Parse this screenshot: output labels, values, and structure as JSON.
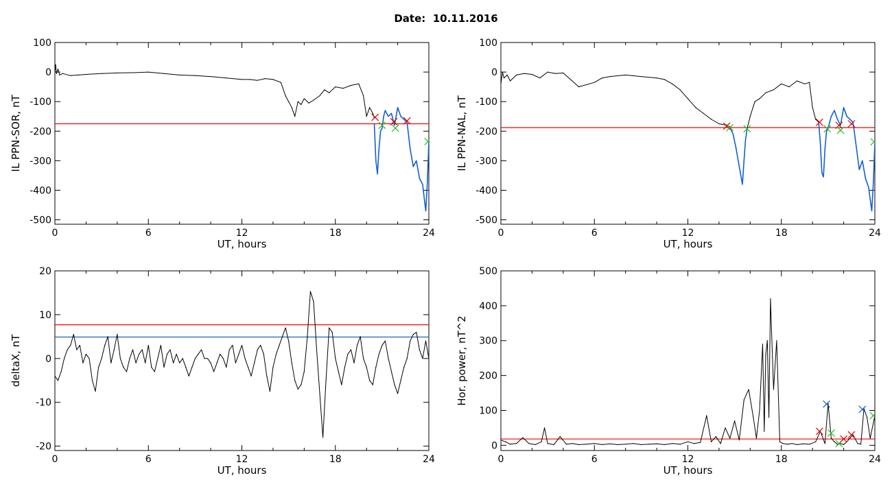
{
  "header": {
    "date_label": "Date:",
    "date_value": "10.11.2016"
  },
  "colors": {
    "axis": "#000000",
    "data": "#000000",
    "threshold_red": "#ff0000",
    "threshold_blue": "#1f5fbf",
    "highlight_blue": "#1060d0",
    "marker_red": "#e00000",
    "marker_green": "#22bb22",
    "marker_blue": "#1060d0"
  },
  "chart_data": [
    {
      "type": "line",
      "ylabel": "IL PPN-SOR, nT",
      "xlabel": "UT, hours",
      "xlim": [
        0,
        24
      ],
      "ylim": [
        -515,
        100
      ],
      "xticks": [
        0,
        6,
        12,
        18,
        24
      ],
      "yticks": [
        100,
        0,
        -100,
        -200,
        -300,
        -400,
        -500
      ],
      "thresholds": [
        {
          "y": -175,
          "color": "#ff0000"
        }
      ],
      "series": [
        {
          "color": "#000000",
          "x": [
            0,
            0.05,
            0.1,
            0.2,
            0.3,
            0.5,
            1,
            1.5,
            2,
            3,
            4,
            5,
            6,
            7,
            8,
            9,
            10,
            11,
            12,
            12.5,
            13,
            13.5,
            14,
            14.5,
            14.8,
            15,
            15.2,
            15.4,
            15.6,
            15.8,
            16,
            16.3,
            16.6,
            17,
            17.3,
            17.6,
            18,
            18.5,
            19,
            19.5,
            19.8,
            20,
            20.2,
            20.4,
            20.5
          ],
          "y": [
            0,
            25,
            -5,
            10,
            -10,
            -5,
            -12,
            -10,
            -8,
            -5,
            -3,
            -2,
            0,
            -5,
            -10,
            -12,
            -15,
            -20,
            -25,
            -25,
            -28,
            -22,
            -25,
            -35,
            -80,
            -100,
            -120,
            -150,
            -100,
            -110,
            -90,
            -105,
            -95,
            -80,
            -60,
            -70,
            -50,
            -55,
            -45,
            -40,
            -80,
            -150,
            -120,
            -140,
            -155
          ]
        },
        {
          "color": "#1060d0",
          "x": [
            20.5,
            20.6,
            20.7,
            20.8,
            20.9,
            21,
            21.1,
            21.2,
            21.4,
            21.6,
            21.8,
            22,
            22.2,
            22.4,
            22.6,
            22.8,
            23,
            23.2,
            23.4,
            23.6,
            23.8,
            23.9,
            24
          ],
          "y": [
            -175,
            -300,
            -345,
            -260,
            -200,
            -190,
            -150,
            -130,
            -150,
            -140,
            -180,
            -120,
            -150,
            -160,
            -170,
            -260,
            -320,
            -300,
            -360,
            -380,
            -470,
            -380,
            -235
          ]
        }
      ],
      "markers": [
        {
          "x": 20.55,
          "y": -153,
          "symbol": "x",
          "color": "#e00000"
        },
        {
          "x": 21.0,
          "y": -180,
          "symbol": "x",
          "color": "#22bb22"
        },
        {
          "x": 21.75,
          "y": -168,
          "symbol": "x",
          "color": "#e00000"
        },
        {
          "x": 21.85,
          "y": -190,
          "symbol": "x",
          "color": "#22bb22"
        },
        {
          "x": 22.6,
          "y": -165,
          "symbol": "x",
          "color": "#e00000"
        },
        {
          "x": 23.95,
          "y": -235,
          "symbol": "x",
          "color": "#22bb22"
        }
      ]
    },
    {
      "type": "line",
      "ylabel": "IL PPN-NAL, nT",
      "xlabel": "UT, hours",
      "xlim": [
        0,
        24
      ],
      "ylim": [
        -515,
        100
      ],
      "xticks": [
        0,
        6,
        12,
        18,
        24
      ],
      "yticks": [
        100,
        0,
        -100,
        -200,
        -300,
        -400,
        -500
      ],
      "thresholds": [
        {
          "y": -188,
          "color": "#ff0000"
        }
      ],
      "series": [
        {
          "color": "#000000",
          "x": [
            0,
            0.1,
            0.2,
            0.4,
            0.6,
            1,
            1.5,
            2,
            2.5,
            3,
            3.5,
            4,
            5,
            6,
            6.5,
            7,
            8,
            9,
            10,
            10.5,
            11,
            11.5,
            12,
            12.5,
            13,
            13.5,
            14,
            14.5,
            14.7
          ],
          "y": [
            -40,
            0,
            -20,
            -10,
            -30,
            -10,
            -5,
            -8,
            -20,
            0,
            -5,
            -3,
            -50,
            -35,
            -20,
            -15,
            -10,
            -15,
            -20,
            -25,
            -40,
            -60,
            -90,
            -120,
            -140,
            -160,
            -175,
            -180,
            -185
          ]
        },
        {
          "color": "#1060d0",
          "x": [
            14.7,
            14.9,
            15.1,
            15.3,
            15.5,
            15.6,
            15.7,
            15.8
          ],
          "y": [
            -188,
            -210,
            -260,
            -320,
            -380,
            -300,
            -230,
            -192
          ]
        },
        {
          "color": "#000000",
          "x": [
            15.8,
            16,
            16.3,
            16.6,
            17,
            17.5,
            18,
            18.5,
            19,
            19.5,
            19.8,
            20,
            20.2,
            20.4
          ],
          "y": [
            -192,
            -150,
            -100,
            -90,
            -70,
            -60,
            -40,
            -50,
            -30,
            -40,
            -35,
            -120,
            -160,
            -170
          ]
        },
        {
          "color": "#1060d0",
          "x": [
            20.4,
            20.5,
            20.6,
            20.7,
            20.8,
            20.9,
            21,
            21.2,
            21.4,
            21.6,
            21.8,
            22,
            22.2,
            22.4,
            22.6,
            22.8,
            23,
            23.2,
            23.4,
            23.6,
            23.8,
            23.9,
            24
          ],
          "y": [
            -175,
            -240,
            -340,
            -355,
            -260,
            -200,
            -190,
            -150,
            -130,
            -160,
            -180,
            -120,
            -150,
            -160,
            -170,
            -250,
            -330,
            -300,
            -360,
            -390,
            -470,
            -380,
            -240
          ]
        }
      ],
      "markers": [
        {
          "x": 14.5,
          "y": -183,
          "symbol": "x",
          "color": "#e00000"
        },
        {
          "x": 14.7,
          "y": -188,
          "symbol": "x",
          "color": "#22bb22"
        },
        {
          "x": 15.8,
          "y": -192,
          "symbol": "x",
          "color": "#22bb22"
        },
        {
          "x": 20.45,
          "y": -170,
          "symbol": "x",
          "color": "#e00000"
        },
        {
          "x": 20.95,
          "y": -192,
          "symbol": "x",
          "color": "#22bb22"
        },
        {
          "x": 21.7,
          "y": -180,
          "symbol": "x",
          "color": "#e00000"
        },
        {
          "x": 21.8,
          "y": -197,
          "symbol": "x",
          "color": "#22bb22"
        },
        {
          "x": 22.5,
          "y": -175,
          "symbol": "x",
          "color": "#e00000"
        },
        {
          "x": 23.95,
          "y": -236,
          "symbol": "x",
          "color": "#22bb22"
        }
      ]
    },
    {
      "type": "line",
      "ylabel": "deltaX, nT",
      "xlabel": "UT, hours",
      "xlim": [
        0,
        24
      ],
      "ylim": [
        -21,
        20
      ],
      "xticks": [
        0,
        6,
        12,
        18,
        24
      ],
      "yticks": [
        20,
        10,
        0,
        -10,
        -20
      ],
      "thresholds": [
        {
          "y": 7.7,
          "color": "#ff0000"
        },
        {
          "y": 4.9,
          "color": "#1f5fbf"
        }
      ],
      "series": [
        {
          "color": "#000000",
          "x": [
            0,
            0.2,
            0.4,
            0.6,
            0.8,
            1.0,
            1.2,
            1.4,
            1.6,
            1.8,
            2.0,
            2.2,
            2.4,
            2.6,
            2.8,
            3.0,
            3.2,
            3.4,
            3.6,
            3.8,
            4.0,
            4.2,
            4.4,
            4.6,
            4.8,
            5.0,
            5.2,
            5.4,
            5.6,
            5.8,
            6.0,
            6.2,
            6.4,
            6.6,
            6.8,
            7.0,
            7.2,
            7.4,
            7.6,
            7.8,
            8.0,
            8.2,
            8.4,
            8.6,
            8.8,
            9.0,
            9.2,
            9.4,
            9.6,
            9.8,
            10.0,
            10.2,
            10.4,
            10.6,
            10.8,
            11.0,
            11.2,
            11.4,
            11.6,
            11.8,
            12.0,
            12.2,
            12.4,
            12.6,
            12.8,
            13.0,
            13.2,
            13.4,
            13.6,
            13.8,
            14.0,
            14.2,
            14.4,
            14.6,
            14.8,
            15.0,
            15.2,
            15.4,
            15.6,
            15.8,
            16.0,
            16.2,
            16.4,
            16.6,
            16.8,
            17.0,
            17.2,
            17.4,
            17.6,
            17.8,
            18.0,
            18.2,
            18.4,
            18.6,
            18.8,
            19.0,
            19.2,
            19.4,
            19.6,
            19.8,
            20.0,
            20.2,
            20.4,
            20.6,
            20.8,
            21.0,
            21.2,
            21.4,
            21.6,
            21.8,
            22.0,
            22.2,
            22.4,
            22.6,
            22.8,
            23.0,
            23.2,
            23.4,
            23.6,
            23.8,
            24.0
          ],
          "y": [
            -4,
            -5,
            -3,
            0,
            2,
            3,
            5.5,
            2,
            3,
            -1,
            1,
            0,
            -5,
            -7.5,
            -2,
            0,
            3,
            5,
            -1,
            2,
            5.5,
            0,
            -2,
            -3,
            0,
            2,
            -1,
            1,
            2,
            -1,
            3,
            -2,
            -3,
            0,
            3,
            -2,
            1,
            2,
            -1,
            1,
            -1,
            0,
            -2,
            -4,
            -2,
            0,
            1,
            2,
            0,
            0,
            -1,
            -3,
            -1,
            1,
            0,
            -2,
            2,
            3,
            -1,
            1,
            3,
            0,
            -2,
            -4,
            -1,
            2,
            3,
            1,
            -4,
            -7.5,
            -2,
            1,
            3,
            5,
            7,
            4,
            -1,
            -5,
            -7,
            -6,
            -3,
            5,
            15.3,
            13,
            2,
            -8,
            -18,
            -5,
            7,
            6,
            0,
            -3,
            -6,
            -2,
            1,
            2,
            -1,
            3,
            5,
            0,
            -2,
            -5,
            -6,
            -2,
            1,
            3,
            4,
            0,
            -3,
            -6,
            -8,
            -5,
            -2,
            0,
            4,
            5.5,
            6,
            2,
            0,
            4,
            0
          ]
        }
      ],
      "markers": []
    },
    {
      "type": "line",
      "ylabel": "Hor. power, nT^2",
      "xlabel": "UT, hours",
      "xlim": [
        0,
        24
      ],
      "ylim": [
        -15,
        500
      ],
      "xticks": [
        0,
        6,
        12,
        18,
        24
      ],
      "yticks": [
        500,
        400,
        300,
        200,
        100,
        0
      ],
      "thresholds": [
        {
          "y": 18,
          "color": "#ff0000"
        }
      ],
      "series": [
        {
          "color": "#000000",
          "x": [
            0,
            0.3,
            0.6,
            1.0,
            1.4,
            1.8,
            2.2,
            2.6,
            2.8,
            3.0,
            3.4,
            3.8,
            4.2,
            4.6,
            5.0,
            5.5,
            6.0,
            6.5,
            7.0,
            7.5,
            8.0,
            8.5,
            9.0,
            9.5,
            10.0,
            10.5,
            11.0,
            11.5,
            12.0,
            12.4,
            12.8,
            13.2,
            13.5,
            13.8,
            14.1,
            14.4,
            14.7,
            15.0,
            15.3,
            15.6,
            15.9,
            16.2,
            16.4,
            16.6,
            16.8,
            16.9,
            17.0,
            17.1,
            17.2,
            17.3,
            17.5,
            17.7,
            17.9,
            18.1,
            18.4,
            18.7,
            19.0,
            19.4,
            19.8,
            20.2,
            20.5,
            20.8,
            21.0,
            21.2,
            21.4,
            21.6,
            21.8,
            22.0,
            22.3,
            22.6,
            22.9,
            23.1,
            23.3,
            23.5,
            23.7,
            24.0
          ],
          "y": [
            15,
            10,
            3,
            5,
            22,
            5,
            2,
            10,
            50,
            5,
            2,
            25,
            3,
            5,
            2,
            3,
            5,
            2,
            4,
            2,
            3,
            5,
            2,
            3,
            4,
            2,
            5,
            3,
            10,
            5,
            8,
            85,
            10,
            25,
            5,
            50,
            20,
            70,
            15,
            130,
            160,
            80,
            20,
            100,
            290,
            40,
            260,
            300,
            80,
            420,
            160,
            300,
            10,
            5,
            3,
            5,
            2,
            4,
            3,
            10,
            40,
            5,
            120,
            20,
            10,
            3,
            5,
            2,
            15,
            30,
            5,
            3,
            105,
            80,
            20,
            85
          ]
        }
      ],
      "markers": [
        {
          "x": 20.45,
          "y": 40,
          "symbol": "x",
          "color": "#e00000"
        },
        {
          "x": 20.9,
          "y": 118,
          "symbol": "x",
          "color": "#1060d0"
        },
        {
          "x": 21.2,
          "y": 35,
          "symbol": "x",
          "color": "#22bb22"
        },
        {
          "x": 21.7,
          "y": 5,
          "symbol": "x",
          "color": "#22bb22"
        },
        {
          "x": 22.0,
          "y": 18,
          "symbol": "x",
          "color": "#e00000"
        },
        {
          "x": 22.5,
          "y": 30,
          "symbol": "x",
          "color": "#e00000"
        },
        {
          "x": 23.2,
          "y": 103,
          "symbol": "x",
          "color": "#1060d0"
        },
        {
          "x": 23.9,
          "y": 85,
          "symbol": "x",
          "color": "#22bb22"
        }
      ]
    }
  ]
}
